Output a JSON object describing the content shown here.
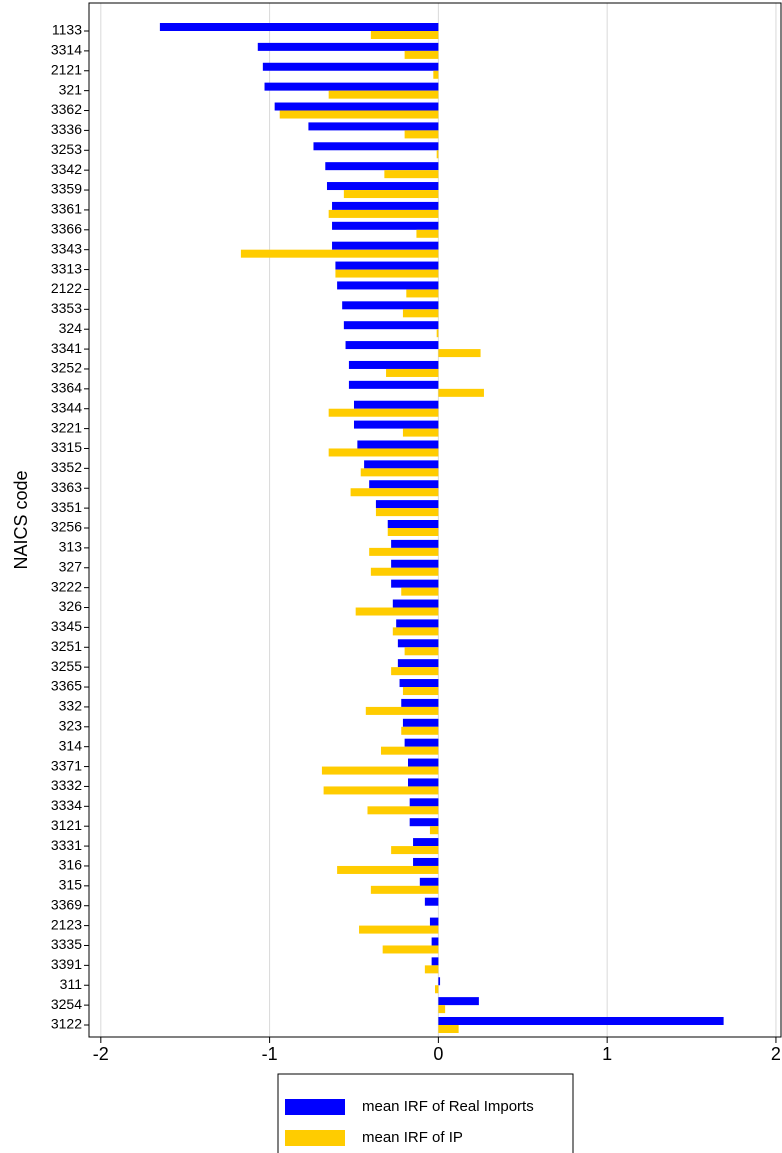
{
  "chart_data": {
    "type": "hbar",
    "ylabel": "NAICS code",
    "categories": [
      "1133",
      "3314",
      "2121",
      "321",
      "3362",
      "3336",
      "3253",
      "3342",
      "3359",
      "3361",
      "3366",
      "3343",
      "3313",
      "2122",
      "3353",
      "324",
      "3341",
      "3252",
      "3364",
      "3344",
      "3221",
      "3315",
      "3352",
      "3363",
      "3351",
      "3256",
      "313",
      "327",
      "3222",
      "326",
      "3345",
      "3251",
      "3255",
      "3365",
      "332",
      "323",
      "314",
      "3371",
      "3332",
      "3334",
      "3121",
      "3331",
      "316",
      "315",
      "3369",
      "2123",
      "3335",
      "3391",
      "311",
      "3254",
      "3122"
    ],
    "series": [
      {
        "name": "mean IRF of Real Imports",
        "color": "#0000ff",
        "values": [
          -1.65,
          -1.07,
          -1.04,
          -1.03,
          -0.97,
          -0.77,
          -0.74,
          -0.67,
          -0.66,
          -0.63,
          -0.63,
          -0.63,
          -0.61,
          -0.6,
          -0.57,
          -0.56,
          -0.55,
          -0.53,
          -0.53,
          -0.5,
          -0.5,
          -0.48,
          -0.44,
          -0.41,
          -0.37,
          -0.3,
          -0.28,
          -0.28,
          -0.28,
          -0.27,
          -0.25,
          -0.24,
          -0.24,
          -0.23,
          -0.22,
          -0.21,
          -0.2,
          -0.18,
          -0.18,
          -0.17,
          -0.17,
          -0.15,
          -0.15,
          -0.11,
          -0.08,
          -0.05,
          -0.04,
          -0.04,
          0.01,
          0.24,
          1.69
        ]
      },
      {
        "name": "mean IRF of IP",
        "color": "#ffcc00",
        "values": [
          -0.4,
          -0.2,
          -0.03,
          -0.65,
          -0.94,
          -0.2,
          -0.01,
          -0.32,
          -0.56,
          -0.65,
          -0.13,
          -1.17,
          -0.61,
          -0.19,
          -0.21,
          -0.01,
          0.25,
          -0.31,
          0.27,
          -0.65,
          -0.21,
          -0.65,
          -0.46,
          -0.52,
          -0.37,
          -0.3,
          -0.41,
          -0.4,
          -0.22,
          -0.49,
          -0.27,
          -0.2,
          -0.28,
          -0.21,
          -0.43,
          -0.22,
          -0.34,
          -0.69,
          -0.68,
          -0.42,
          -0.05,
          -0.28,
          -0.6,
          -0.4,
          0,
          -0.47,
          -0.33,
          -0.08,
          -0.02,
          0.04,
          0.12
        ]
      }
    ],
    "xlim": [
      -2.07,
      2.03
    ],
    "xticks": [
      -2,
      -1,
      0,
      1,
      2
    ],
    "grid": true
  }
}
